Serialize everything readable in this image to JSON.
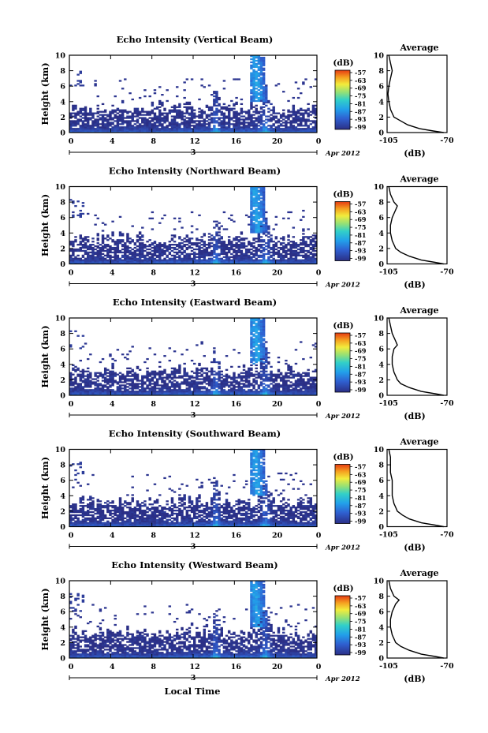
{
  "figure": {
    "xlabel_bottom": "Local Time",
    "date_day": "3",
    "date_month_year": "Apr 2012"
  },
  "chart_data": [
    {
      "type": "heatmap",
      "title": "Echo Intensity (Vertical Beam)",
      "ylabel": "Height (km)",
      "xlabel": "",
      "x_ticks": [
        "0",
        "4",
        "8",
        "12",
        "16",
        "20",
        "0"
      ],
      "xlim": [
        0,
        24
      ],
      "y_ticks": [
        "0",
        "2",
        "4",
        "6",
        "8",
        "10"
      ],
      "ylim": [
        0,
        10
      ],
      "grid": false,
      "colorbar": {
        "label": "(dB)",
        "ticks": [
          "-57",
          "-63",
          "-69",
          "-75",
          "-81",
          "-87",
          "-93",
          "-99"
        ],
        "range": [
          -99,
          -57
        ]
      },
      "profile": {
        "title": "Average",
        "xlabel": "(dB)",
        "xlim": [
          -105,
          -70
        ],
        "x_ticks": [
          "-105",
          "-70"
        ],
        "ylim": [
          0,
          10
        ],
        "heights": [
          0,
          0.2,
          0.5,
          1,
          1.5,
          2,
          2.5,
          3,
          3.5,
          4,
          5,
          6,
          7,
          8,
          9,
          10
        ],
        "values": [
          -72,
          -78,
          -86,
          -93,
          -97,
          -101,
          -102,
          -103,
          -103.5,
          -104,
          -104.5,
          -104,
          -103,
          -102,
          -103,
          -104
        ]
      }
    },
    {
      "type": "heatmap",
      "title": "Echo Intensity (Northward Beam)",
      "ylabel": "Height (km)",
      "xlabel": "",
      "x_ticks": [
        "0",
        "4",
        "8",
        "12",
        "16",
        "20",
        "0"
      ],
      "xlim": [
        0,
        24
      ],
      "y_ticks": [
        "0",
        "2",
        "4",
        "6",
        "8",
        "10"
      ],
      "ylim": [
        0,
        10
      ],
      "grid": false,
      "colorbar": {
        "label": "(dB)",
        "ticks": [
          "-57",
          "-63",
          "-69",
          "-75",
          "-81",
          "-87",
          "-93",
          "-99"
        ],
        "range": [
          -99,
          -57
        ]
      },
      "profile": {
        "title": "Average",
        "xlabel": "(dB)",
        "xlim": [
          -105,
          -70
        ],
        "x_ticks": [
          "-105",
          "-70"
        ],
        "ylim": [
          0,
          10
        ],
        "heights": [
          0,
          0.2,
          0.5,
          1,
          1.5,
          2,
          2.5,
          3,
          4,
          5,
          6,
          7,
          7.5,
          8,
          9,
          10
        ],
        "values": [
          -72,
          -77,
          -85,
          -92,
          -97,
          -100,
          -101,
          -102,
          -103,
          -103,
          -102,
          -100,
          -99,
          -101,
          -103,
          -104
        ]
      }
    },
    {
      "type": "heatmap",
      "title": "Echo Intensity (Eastward Beam)",
      "ylabel": "Height (km)",
      "xlabel": "",
      "x_ticks": [
        "0",
        "4",
        "8",
        "12",
        "16",
        "20",
        "0"
      ],
      "xlim": [
        0,
        24
      ],
      "y_ticks": [
        "0",
        "2",
        "4",
        "6",
        "8",
        "10"
      ],
      "ylim": [
        0,
        10
      ],
      "grid": false,
      "colorbar": {
        "label": "(dB)",
        "ticks": [
          "-57",
          "-63",
          "-69",
          "-75",
          "-81",
          "-87",
          "-93",
          "-99"
        ],
        "range": [
          -99,
          -57
        ]
      },
      "profile": {
        "title": "Average",
        "xlabel": "(dB)",
        "xlim": [
          -105,
          -70
        ],
        "x_ticks": [
          "-105",
          "-70"
        ],
        "ylim": [
          0,
          10
        ],
        "heights": [
          0,
          0.2,
          0.5,
          1,
          1.5,
          2,
          2.5,
          3,
          4,
          5,
          6,
          6.5,
          7,
          8,
          9,
          10
        ],
        "values": [
          -72,
          -77,
          -85,
          -92,
          -97,
          -99,
          -100,
          -101,
          -102,
          -102,
          -101,
          -99,
          -100,
          -102,
          -103,
          -104
        ]
      }
    },
    {
      "type": "heatmap",
      "title": "Echo Intensity (Southward Beam)",
      "ylabel": "Height (km)",
      "xlabel": "",
      "x_ticks": [
        "0",
        "4",
        "8",
        "12",
        "16",
        "20",
        "0"
      ],
      "xlim": [
        0,
        24
      ],
      "y_ticks": [
        "0",
        "2",
        "4",
        "6",
        "8",
        "10"
      ],
      "ylim": [
        0,
        10
      ],
      "grid": false,
      "colorbar": {
        "label": "(dB)",
        "ticks": [
          "-57",
          "-63",
          "-69",
          "-75",
          "-81",
          "-87",
          "-93",
          "-99"
        ],
        "range": [
          -99,
          -57
        ]
      },
      "profile": {
        "title": "Average",
        "xlabel": "(dB)",
        "xlim": [
          -105,
          -70
        ],
        "x_ticks": [
          "-105",
          "-70"
        ],
        "ylim": [
          0,
          10
        ],
        "heights": [
          0,
          0.2,
          0.5,
          1,
          1.5,
          2,
          2.5,
          3,
          4,
          5,
          6,
          7,
          8,
          9,
          10
        ],
        "values": [
          -72,
          -77,
          -85,
          -92,
          -96,
          -99,
          -100,
          -101,
          -102,
          -102,
          -102,
          -103,
          -103,
          -103,
          -104
        ]
      }
    },
    {
      "type": "heatmap",
      "title": "Echo Intensity (Westward Beam)",
      "ylabel": "Height (km)",
      "xlabel": "",
      "x_ticks": [
        "0",
        "4",
        "8",
        "12",
        "16",
        "20",
        "0"
      ],
      "xlim": [
        0,
        24
      ],
      "y_ticks": [
        "0",
        "2",
        "4",
        "6",
        "8",
        "10"
      ],
      "ylim": [
        0,
        10
      ],
      "grid": false,
      "colorbar": {
        "label": "(dB)",
        "ticks": [
          "-57",
          "-63",
          "-69",
          "-75",
          "-81",
          "-87",
          "-93",
          "-99"
        ],
        "range": [
          -99,
          -57
        ]
      },
      "profile": {
        "title": "Average",
        "xlabel": "(dB)",
        "xlim": [
          -105,
          -70
        ],
        "x_ticks": [
          "-105",
          "-70"
        ],
        "ylim": [
          0,
          10
        ],
        "heights": [
          0,
          0.2,
          0.5,
          1,
          1.5,
          2,
          2.5,
          3,
          4,
          5,
          6,
          7,
          7.5,
          8,
          9,
          10
        ],
        "values": [
          -72,
          -77,
          -85,
          -92,
          -97,
          -100,
          -101,
          -102,
          -103,
          -103,
          -102,
          -100,
          -98,
          -101,
          -103,
          -104
        ]
      }
    }
  ]
}
